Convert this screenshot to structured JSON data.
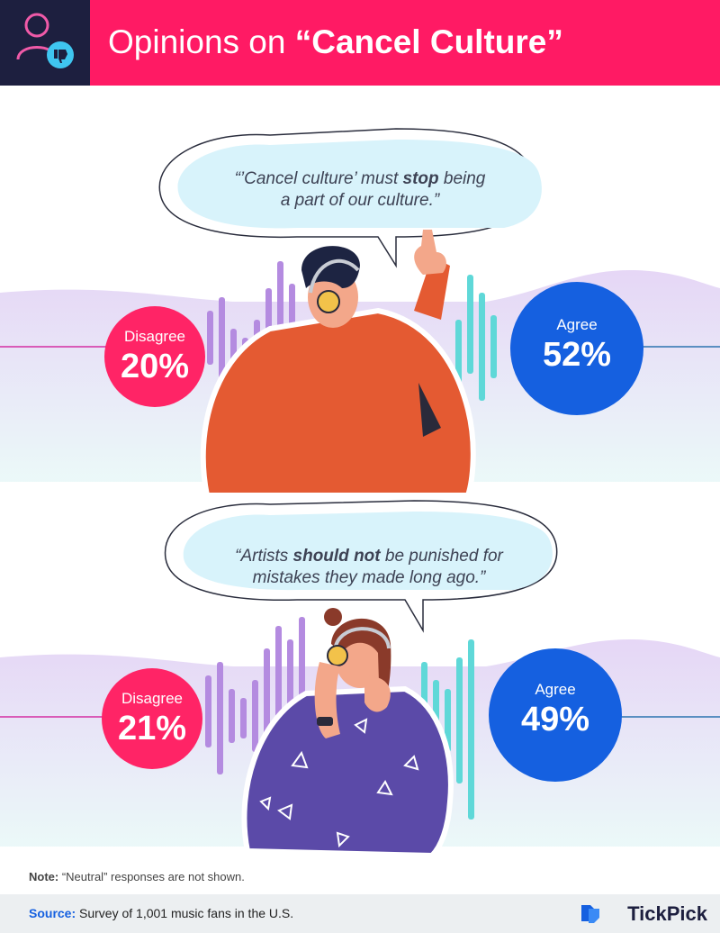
{
  "header": {
    "title_prefix": "Opinions on ",
    "title_emphasis": "“Cancel Culture”",
    "icon": "user-thumbs-down-icon"
  },
  "statements": [
    {
      "quote_parts": [
        "“’Cancel culture’ must ",
        "stop",
        " being"
      ],
      "quote_line2": "a part of our culture.”",
      "disagree_label": "Disagree",
      "disagree_value": "20%",
      "agree_label": "Agree",
      "agree_value": "52%"
    },
    {
      "quote_parts": [
        "“Artists ",
        "should not",
        " be punished for"
      ],
      "quote_line2": "mistakes they made long ago.”",
      "disagree_label": "Disagree",
      "disagree_value": "21%",
      "agree_label": "Agree",
      "agree_value": "49%"
    }
  ],
  "note": {
    "label": "Note:",
    "text": " “Neutral” responses are not shown."
  },
  "source": {
    "label": "Source:",
    "text": " Survey of 1,001 music fans in the U.S."
  },
  "brand": {
    "name": "TickPick",
    "icon": "tickpick-logo-icon"
  },
  "colors": {
    "header_bg": "#ff1a64",
    "header_icon_bg": "#1d1f3f",
    "disagree": "#ff2466",
    "agree": "#1560e0",
    "bubble": "#d8f3fb",
    "wave_left": "#b48be0",
    "wave_right": "#5fd8d8"
  }
}
